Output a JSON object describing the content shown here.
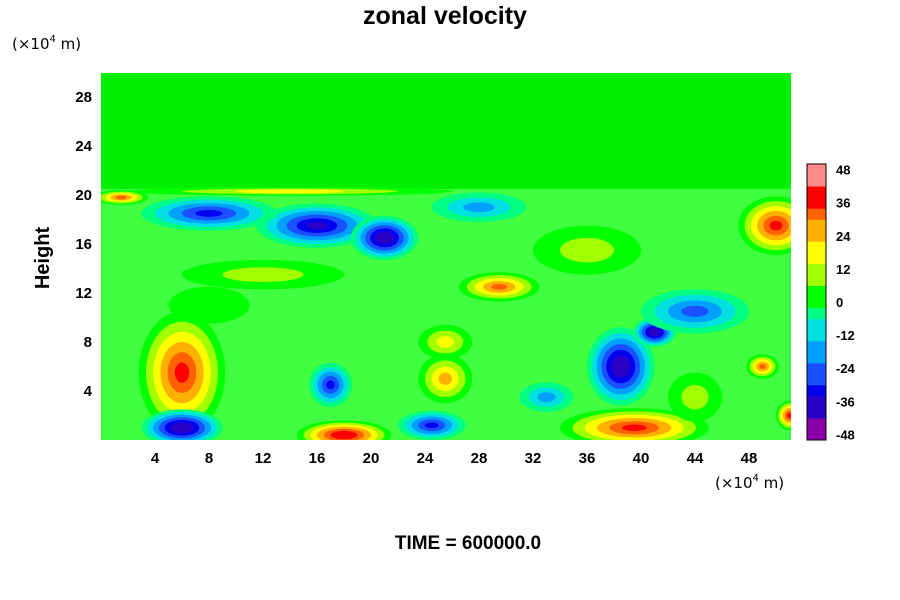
{
  "chart_data": {
    "type": "heatmap",
    "title": "zonal velocity",
    "xlabel": "",
    "ylabel": "Height",
    "x_unit_prefix": "(×10",
    "x_unit_exp": "4",
    "x_unit_suffix": " m)",
    "y_unit_prefix": "(×10",
    "y_unit_exp": "4",
    "y_unit_suffix": " m)",
    "xlim": [
      0,
      51.5
    ],
    "ylim": [
      0,
      30
    ],
    "x_ticks": [
      "4",
      "8",
      "12",
      "16",
      "20",
      "24",
      "28",
      "32",
      "36",
      "40",
      "44",
      "48"
    ],
    "y_ticks": [
      "4",
      "8",
      "12",
      "16",
      "20",
      "24",
      "28"
    ],
    "colorbar": {
      "min": -50,
      "max": 50,
      "step": 4,
      "ticks": [
        "48",
        "36",
        "24",
        "12",
        "0",
        "-12",
        "-24",
        "-36",
        "-48"
      ],
      "colors": [
        "#8a00a8",
        "#2a00c8",
        "#0000f0",
        "#1a50ff",
        "#00a0ff",
        "#00e0e0",
        "#00ff80",
        "#00ff00",
        "#a0ff00",
        "#ffff00",
        "#ffb000",
        "#ff6000",
        "#ff0000",
        "#ff8888"
      ]
    },
    "features": [
      {
        "x": 6,
        "y": 5.5,
        "value": 38,
        "rx": 3.2,
        "ry": 5.0
      },
      {
        "x": 16,
        "y": 17.5,
        "value": -40,
        "rx": 4.5,
        "ry": 1.8
      },
      {
        "x": 21,
        "y": 16.5,
        "value": -45,
        "rx": 2.5,
        "ry": 1.8
      },
      {
        "x": 8,
        "y": 18.5,
        "value": -34,
        "rx": 5.0,
        "ry": 1.4
      },
      {
        "x": 29.5,
        "y": 12.5,
        "value": 32,
        "rx": 3.0,
        "ry": 1.2
      },
      {
        "x": 25.5,
        "y": 5.0,
        "value": 26,
        "rx": 2.0,
        "ry": 2.0
      },
      {
        "x": 25.5,
        "y": 8.0,
        "value": 18,
        "rx": 2.0,
        "ry": 1.4
      },
      {
        "x": 38.5,
        "y": 6.0,
        "value": -46,
        "rx": 2.5,
        "ry": 3.2
      },
      {
        "x": 41,
        "y": 8.8,
        "value": -46,
        "rx": 1.6,
        "ry": 1.2
      },
      {
        "x": 39.5,
        "y": 1.0,
        "value": 40,
        "rx": 5.5,
        "ry": 1.6
      },
      {
        "x": 18,
        "y": 0.4,
        "value": 45,
        "rx": 3.5,
        "ry": 1.2
      },
      {
        "x": 6,
        "y": 1.0,
        "value": -44,
        "rx": 3.0,
        "ry": 1.5
      },
      {
        "x": 17,
        "y": 4.5,
        "value": -32,
        "rx": 1.6,
        "ry": 1.8
      },
      {
        "x": 24.5,
        "y": 1.2,
        "value": -30,
        "rx": 2.5,
        "ry": 1.2
      },
      {
        "x": 50,
        "y": 17.5,
        "value": 38,
        "rx": 2.8,
        "ry": 2.4
      },
      {
        "x": 49,
        "y": 6.0,
        "value": 34,
        "rx": 1.2,
        "ry": 1.0
      },
      {
        "x": 51,
        "y": 2.0,
        "value": 36,
        "rx": 1.0,
        "ry": 1.2
      },
      {
        "x": 14,
        "y": 20.3,
        "value": 20,
        "rx": 12.0,
        "ry": 0.35
      },
      {
        "x": 1.5,
        "y": 19.8,
        "value": 34,
        "rx": 2.0,
        "ry": 0.6
      },
      {
        "x": 28,
        "y": 19.0,
        "value": -18,
        "rx": 3.5,
        "ry": 1.2
      },
      {
        "x": 44,
        "y": 10.5,
        "value": -24,
        "rx": 4.0,
        "ry": 1.8
      },
      {
        "x": 36,
        "y": 15.5,
        "value": 12,
        "rx": 4.0,
        "ry": 2.0
      },
      {
        "x": 33,
        "y": 3.5,
        "value": -22,
        "rx": 2.0,
        "ry": 1.2
      },
      {
        "x": 12,
        "y": 13.5,
        "value": 12,
        "rx": 6.0,
        "ry": 1.2
      },
      {
        "x": 44,
        "y": 3.5,
        "value": 12,
        "rx": 2.0,
        "ry": 2.0
      },
      {
        "x": 8,
        "y": 11.0,
        "value": 8,
        "rx": 3.0,
        "ry": 1.5
      }
    ]
  },
  "footer": {
    "time_label": "TIME = 600000.0"
  }
}
